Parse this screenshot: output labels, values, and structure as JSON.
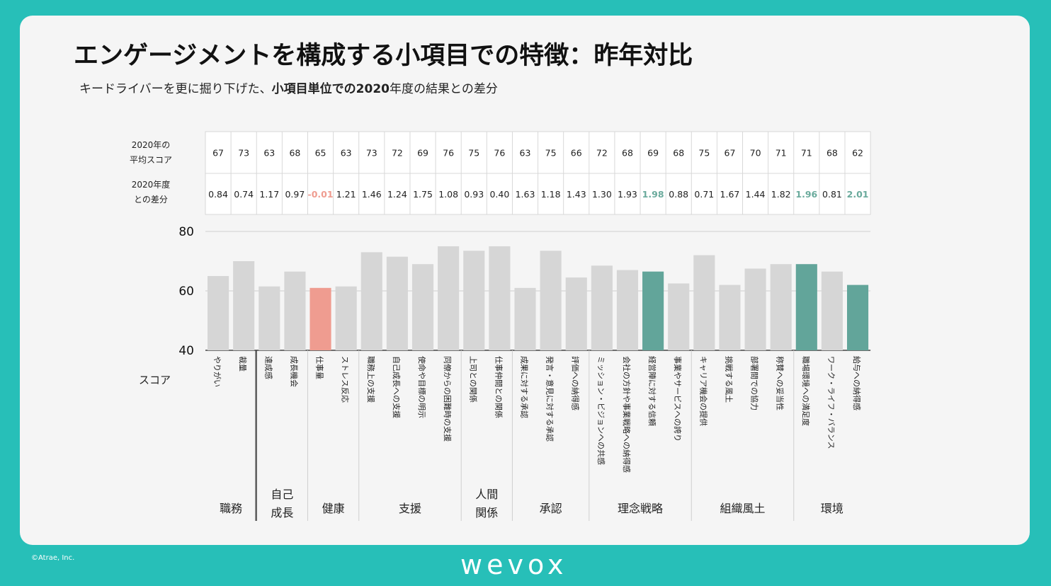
{
  "title": "エンゲージメントを構成する小項目での特徴：昨年対比",
  "subtitle": {
    "prefix": "キードライバーを更に掘り下げた、",
    "bold": "小項目単位での2020",
    "suffix": "年度の結果との差分"
  },
  "row_labels": {
    "avg_line1": "2020年の",
    "avg_line2": "平均スコア",
    "diff_line1": "2020年度",
    "diff_line2": "との差分",
    "score": "スコア"
  },
  "colors": {
    "default_bar": "#d6d6d6",
    "highlight_bar": "#62a59a",
    "negative_bar": "#ef9c90",
    "highlight_text": "#6aaa9c",
    "negative_text": "#ef9c90"
  },
  "chart_data": {
    "type": "bar",
    "ylim": [
      40,
      80
    ],
    "yticks": [
      40,
      60,
      80
    ],
    "ylabel": "スコア",
    "categories": [
      "やりがい",
      "裁量",
      "達成感",
      "成長機会",
      "仕事量",
      "ストレス反応",
      "職務上の支援",
      "自己成長への支援",
      "使命や目標の明示",
      "同僚からの困難時の支援",
      "上司との関係",
      "仕事仲間との関係",
      "成果に対する承認",
      "発言・意見に対する承認",
      "評価への納得感",
      "ミッション・ビジョンへの共感",
      "会社の方針や事業戦略への納得感",
      "経営陣に対する信頼",
      "事業やサービスへの誇り",
      "キャリア機会の提供",
      "挑戦する風土",
      "部署間での協力",
      "称賛への妥当性",
      "職場環境への満足度",
      "ワーク・ライフ・バランス",
      "給与への納得感"
    ],
    "values": [
      65,
      70,
      61.5,
      66.5,
      61,
      61.5,
      73,
      71.5,
      69,
      75,
      73.5,
      75,
      61,
      73.5,
      64.5,
      68.5,
      67,
      66.5,
      62.5,
      72,
      62,
      67.5,
      69,
      69,
      66.5,
      62
    ],
    "avg_2020": [
      "67",
      "73",
      "63",
      "68",
      "65",
      "63",
      "73",
      "72",
      "69",
      "76",
      "75",
      "76",
      "63",
      "75",
      "66",
      "72",
      "68",
      "69",
      "68",
      "75",
      "67",
      "70",
      "71",
      "71",
      "68",
      "62"
    ],
    "diff_2020": [
      "0.84",
      "0.74",
      "1.17",
      "0.97",
      "-0.01",
      "1.21",
      "1.46",
      "1.24",
      "1.75",
      "1.08",
      "0.93",
      "0.40",
      "1.63",
      "1.18",
      "1.43",
      "1.30",
      "1.93",
      "1.98",
      "0.88",
      "0.71",
      "1.67",
      "1.44",
      "1.82",
      "1.96",
      "0.81",
      "2.01"
    ],
    "highlight": [
      "default",
      "default",
      "default",
      "default",
      "negative",
      "default",
      "default",
      "default",
      "default",
      "default",
      "default",
      "default",
      "default",
      "default",
      "default",
      "default",
      "default",
      "highlight",
      "default",
      "default",
      "default",
      "default",
      "default",
      "highlight",
      "default",
      "highlight"
    ],
    "groups": [
      {
        "lines": [
          "職務"
        ],
        "span": 2
      },
      {
        "lines": [
          "自己",
          "成長"
        ],
        "span": 2
      },
      {
        "lines": [
          "健康"
        ],
        "span": 2
      },
      {
        "lines": [
          "支援"
        ],
        "span": 4
      },
      {
        "lines": [
          "人間",
          "関係"
        ],
        "span": 2
      },
      {
        "lines": [
          "承認"
        ],
        "span": 3
      },
      {
        "lines": [
          "理念戦略"
        ],
        "span": 4
      },
      {
        "lines": [
          "組織風土"
        ],
        "span": 4
      },
      {
        "lines": [
          "環境"
        ],
        "span": 3
      }
    ]
  },
  "footer": {
    "copyright": "©Atrae, Inc.",
    "logo": "wevox"
  }
}
